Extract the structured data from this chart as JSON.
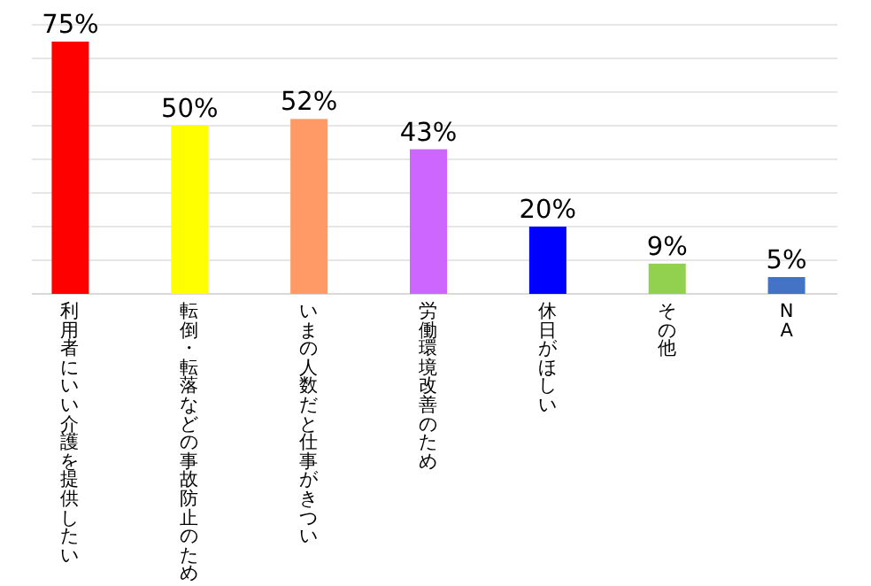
{
  "chart_data": {
    "type": "bar",
    "categories": [
      "利用者にいい介護を提供したい",
      "転倒・転落などの事故防止のため",
      "いまの人数だと仕事がきつい",
      "労働環境改善のため",
      "休日がほしい",
      "その他",
      "NA"
    ],
    "values": [
      75,
      50,
      52,
      43,
      20,
      9,
      5
    ],
    "value_labels": [
      "75%",
      "50%",
      "52%",
      "43%",
      "20%",
      "9%",
      "5%"
    ],
    "colors": [
      "#ff0000",
      "#ffff00",
      "#ff9966",
      "#cc66ff",
      "#0000ff",
      "#92d050",
      "#4472c4"
    ],
    "ylim": [
      0,
      80
    ],
    "yticks": [
      {
        "value": 0,
        "label": null
      },
      {
        "value": 10,
        "label": null
      },
      {
        "value": 20,
        "label": null
      },
      {
        "value": 30,
        "label": null
      },
      {
        "value": 40,
        "label": null
      },
      {
        "value": 50,
        "label": null
      },
      {
        "value": 60,
        "label": null
      },
      {
        "value": 70,
        "label": null
      },
      {
        "value": 80,
        "label": null
      }
    ],
    "grid": "y",
    "tick_labels": "x"
  }
}
